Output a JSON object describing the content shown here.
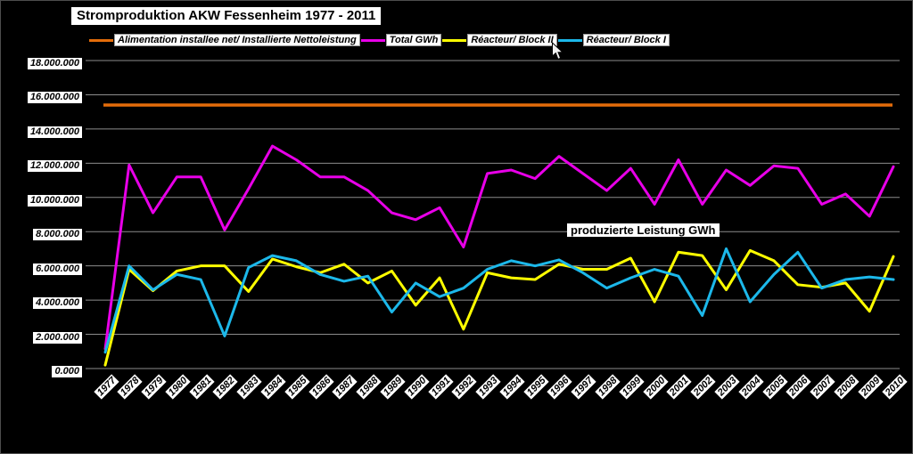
{
  "window": {
    "title": "Stromproduktion AKW Fessenheim 1977 - 2011"
  },
  "legend": {
    "items": [
      {
        "label": "Alimentation installee net/ Installierte Nettoleistung",
        "color": "#E36C0A"
      },
      {
        "label": "Total GWh",
        "color": "#E800E8"
      },
      {
        "label": "Réacteur/ Block II",
        "color": "#FFFF00"
      },
      {
        "label": "Réacteur/ Block I",
        "color": "#1CB8EA"
      }
    ]
  },
  "annotation": "produzierte Leistung GWh",
  "chart_data": {
    "type": "line",
    "title": "Stromproduktion AKW Fessenheim 1977 - 2011",
    "xlabel": "",
    "ylabel": "",
    "background": "#000000",
    "gridline_color": "#8C8C8C",
    "grid": "horizontal",
    "legend_position": "top",
    "ylim": [
      0,
      18000000
    ],
    "y_ticks": {
      "labels": [
        "18.000.000",
        "16.000.000",
        "14.000.000",
        "12.000.000",
        "10.000.000",
        "8.000.000",
        "6.000.000",
        "4.000.000",
        "2.000.000",
        "0.000"
      ],
      "values": [
        18000000,
        16000000,
        14000000,
        12000000,
        10000000,
        8000000,
        6000000,
        4000000,
        2000000,
        0
      ]
    },
    "x": [
      "1977",
      "1978",
      "1979",
      "1980",
      "1981",
      "1982",
      "1983",
      "1984",
      "1985",
      "1986",
      "1987",
      "1988",
      "1989",
      "1990",
      "1991",
      "1992",
      "1993",
      "1994",
      "1995",
      "1996",
      "1997",
      "1998",
      "1999",
      "2000",
      "2001",
      "2002",
      "2003",
      "2004",
      "2005",
      "2006",
      "2007",
      "2008",
      "2009",
      "2010"
    ],
    "series": [
      {
        "name": "Alimentation installee net/ Installierte Nettoleistung",
        "color": "#E36C0A",
        "style": "constant",
        "value": 15400000
      },
      {
        "name": "Total GWh",
        "color": "#E800E8",
        "values": [
          1150000,
          11900000,
          9100000,
          11200000,
          11200000,
          8100000,
          10500000,
          13000000,
          12200000,
          11200000,
          11200000,
          10400000,
          9100000,
          8700000,
          9400000,
          7100000,
          11400000,
          11600000,
          11100000,
          12400000,
          11400000,
          10400000,
          11700000,
          9600000,
          12200000,
          9600000,
          11600000,
          10700000,
          11850000,
          11700000,
          9600000,
          10200000,
          8900000,
          11800000
        ]
      },
      {
        "name": "Réacteur/ Block II",
        "color": "#FFFF00",
        "values": [
          200000,
          5800000,
          4550000,
          5700000,
          6000000,
          6000000,
          4500000,
          6400000,
          5950000,
          5600000,
          6100000,
          5000000,
          5700000,
          3700000,
          5300000,
          2300000,
          5600000,
          5300000,
          5200000,
          6100000,
          5800000,
          5800000,
          6450000,
          3900000,
          6800000,
          6600000,
          4600000,
          6900000,
          6300000,
          4900000,
          4750000,
          5000000,
          3350000,
          6550000
        ]
      },
      {
        "name": "Réacteur/ Block I",
        "color": "#1CB8EA",
        "values": [
          950000,
          6000000,
          4600000,
          5500000,
          5200000,
          1900000,
          5900000,
          6600000,
          6300000,
          5500000,
          5100000,
          5400000,
          3300000,
          5000000,
          4200000,
          4700000,
          5800000,
          6300000,
          6000000,
          6350000,
          5600000,
          4700000,
          5300000,
          5800000,
          5400000,
          3100000,
          7000000,
          3900000,
          5500000,
          6800000,
          4700000,
          5200000,
          5350000,
          5200000
        ]
      }
    ],
    "annotations": [
      "produzierte Leistung GWh"
    ]
  }
}
